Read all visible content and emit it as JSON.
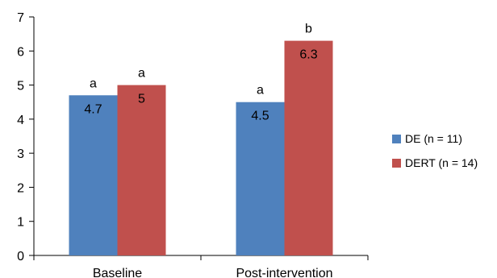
{
  "chart_data": {
    "type": "bar",
    "categories": [
      "Baseline",
      "Post-intervention"
    ],
    "series": [
      {
        "name": "DE (n = 11)",
        "values": [
          4.7,
          4.5
        ],
        "labels": [
          "4.7",
          "4.5"
        ],
        "letters": [
          "a",
          "a"
        ],
        "color": "#4f81bd"
      },
      {
        "name": "DERT (n = 14)",
        "values": [
          5,
          6.3
        ],
        "labels": [
          "5",
          "6.3"
        ],
        "letters": [
          "a",
          "b"
        ],
        "color": "#c0504d"
      }
    ],
    "title": "",
    "xlabel": "",
    "ylabel": "",
    "ylim": [
      0,
      7
    ],
    "yticks": [
      0,
      1,
      2,
      3,
      4,
      5,
      6,
      7
    ],
    "grid": false,
    "legend_position": "right"
  }
}
